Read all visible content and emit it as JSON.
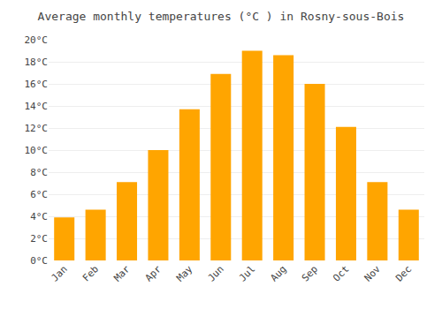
{
  "chart_data": {
    "type": "bar",
    "title": "Average monthly temperatures (°C ) in Rosny-sous-Bois",
    "categories": [
      "Jan",
      "Feb",
      "Mar",
      "Apr",
      "May",
      "Jun",
      "Jul",
      "Aug",
      "Sep",
      "Oct",
      "Nov",
      "Dec"
    ],
    "values": [
      3.9,
      4.6,
      7.1,
      10.0,
      13.7,
      16.9,
      19.0,
      18.6,
      16.0,
      12.1,
      7.1,
      4.6
    ],
    "color": "#FFA500",
    "ylim": [
      0,
      20
    ],
    "yticks": [
      {
        "value": 0,
        "label": "0°C"
      },
      {
        "value": 2,
        "label": "2°C"
      },
      {
        "value": 4,
        "label": "4°C"
      },
      {
        "value": 6,
        "label": "6°C"
      },
      {
        "value": 8,
        "label": "8°C"
      },
      {
        "value": 10,
        "label": "10°C"
      },
      {
        "value": 12,
        "label": "12°C"
      },
      {
        "value": 14,
        "label": "14°C"
      },
      {
        "value": 16,
        "label": "16°C"
      },
      {
        "value": 18,
        "label": "18°C"
      },
      {
        "value": 20,
        "label": "20°C"
      }
    ],
    "grid": true
  }
}
